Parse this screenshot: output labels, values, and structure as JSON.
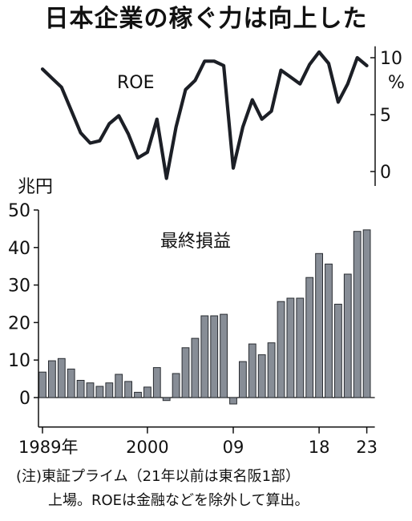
{
  "title": "日本企業の稼ぐ力は向上した",
  "chart_data": [
    {
      "type": "line",
      "label": "ROE",
      "unit": "%",
      "yticks": [
        10,
        5,
        0
      ],
      "ytick_labels": [
        "10",
        "5",
        "0"
      ],
      "ylim": [
        -1,
        11
      ],
      "x": [
        1989,
        1990,
        1991,
        1992,
        1993,
        1994,
        1995,
        1996,
        1997,
        1998,
        1999,
        2000,
        2001,
        2002,
        2003,
        2004,
        2005,
        2006,
        2007,
        2008,
        2009,
        2010,
        2011,
        2012,
        2013,
        2014,
        2015,
        2016,
        2017,
        2018,
        2019,
        2020,
        2021,
        2022,
        2023
      ],
      "values": [
        9.0,
        8.2,
        7.4,
        5.4,
        3.4,
        2.5,
        2.7,
        4.2,
        4.9,
        3.3,
        1.2,
        1.7,
        4.6,
        -0.6,
        3.9,
        7.2,
        8.0,
        9.7,
        9.7,
        9.3,
        0.3,
        3.9,
        6.3,
        4.6,
        5.3,
        8.9,
        8.3,
        7.7,
        9.4,
        10.5,
        9.5,
        6.1,
        7.7,
        10.0,
        9.3
      ]
    },
    {
      "type": "bar",
      "label": "最終損益",
      "unit": "兆円",
      "yticks": [
        50,
        40,
        30,
        20,
        10,
        0
      ],
      "ytick_labels": [
        "50",
        "40",
        "30",
        "20",
        "10",
        "0"
      ],
      "ylim": [
        -7,
        50
      ],
      "x": [
        1989,
        1990,
        1991,
        1992,
        1993,
        1994,
        1995,
        1996,
        1997,
        1998,
        1999,
        2000,
        2001,
        2002,
        2003,
        2004,
        2005,
        2006,
        2007,
        2008,
        2009,
        2010,
        2011,
        2012,
        2013,
        2014,
        2015,
        2016,
        2017,
        2018,
        2019,
        2020,
        2021,
        2022,
        2023
      ],
      "values": [
        6.8,
        9.8,
        10.4,
        7.6,
        4.6,
        3.9,
        3.0,
        3.9,
        6.2,
        4.3,
        1.4,
        2.8,
        8.0,
        -0.8,
        6.4,
        13.3,
        15.8,
        21.8,
        21.8,
        22.2,
        -1.7,
        9.6,
        14.3,
        11.4,
        14.6,
        25.6,
        26.5,
        26.5,
        32.0,
        38.4,
        35.6,
        24.9,
        32.9,
        44.3,
        44.7
      ],
      "x_tick_labels": [
        "1989年",
        "2000",
        "09",
        "18",
        "23"
      ],
      "x_tick_years": [
        1989,
        2000,
        2009,
        2018,
        2023
      ]
    }
  ],
  "note": {
    "line1": "(注)東証プライム（21年以前は東名阪1部）",
    "line2": "上場。ROEは金融などを除外して算出。"
  },
  "colors": {
    "bar_fill": "#878d96",
    "bar_stroke": "#2a2d32",
    "line": "#1c1f26"
  }
}
